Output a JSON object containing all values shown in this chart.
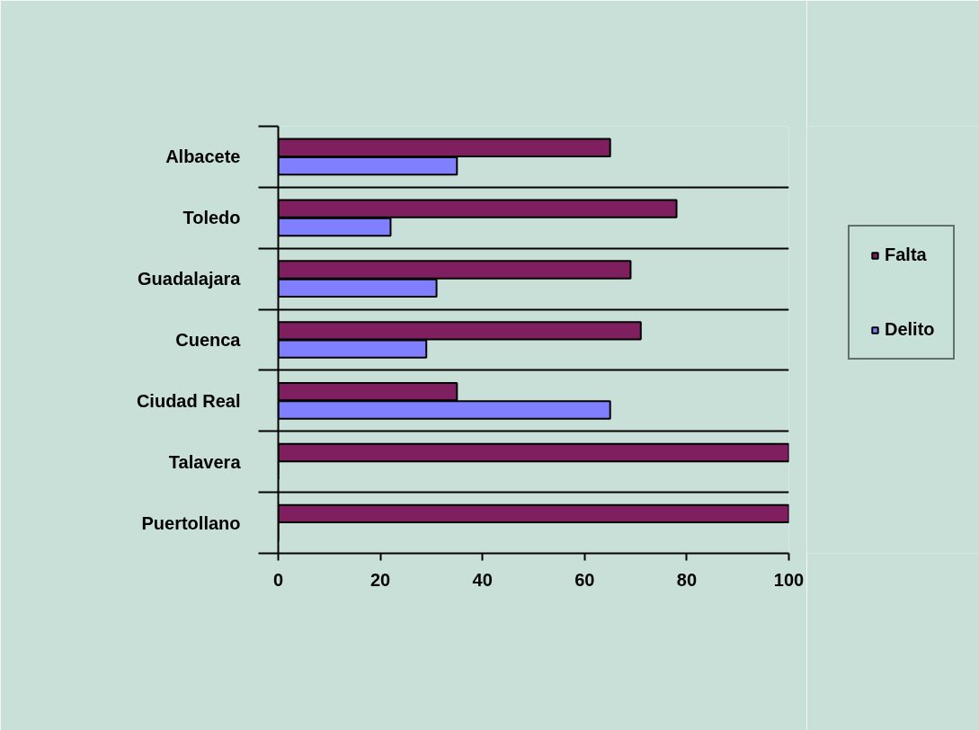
{
  "chart_data": {
    "type": "bar",
    "orientation": "horizontal",
    "categories": [
      "Albacete",
      "Toledo",
      "Guadalajara",
      "Cuenca",
      "Ciudad Real",
      "Talavera",
      "Puertollano"
    ],
    "series": [
      {
        "name": "Falta",
        "color": "#7f1f5f",
        "values": [
          65,
          78,
          69,
          71,
          35,
          100,
          100
        ]
      },
      {
        "name": "Delito",
        "color": "#8080ff",
        "values": [
          35,
          22,
          31,
          29,
          65,
          0,
          0
        ]
      }
    ],
    "xlim": [
      0,
      100
    ],
    "xticks": [
      0,
      20,
      40,
      60,
      80,
      100
    ],
    "grid": "y",
    "legend": "right"
  }
}
